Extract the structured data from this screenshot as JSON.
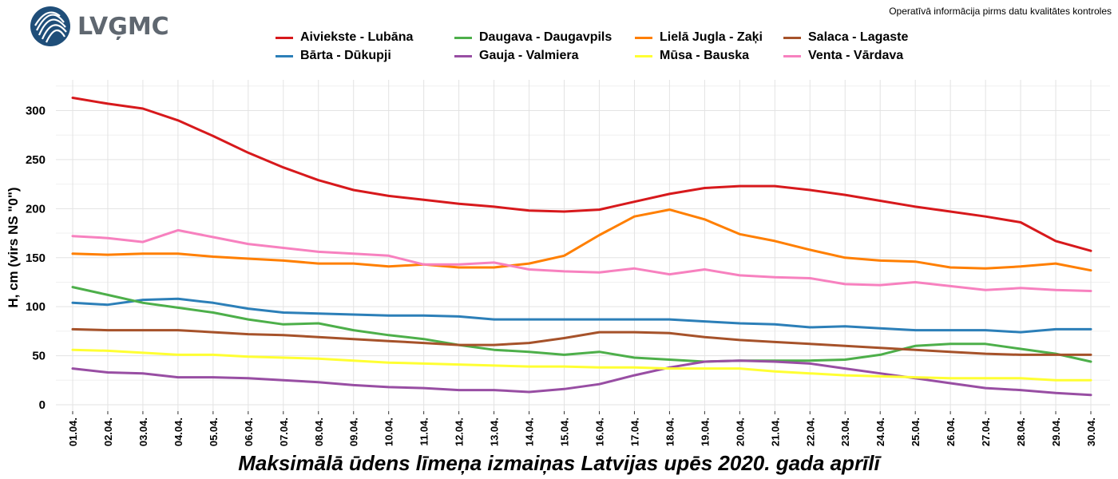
{
  "header": {
    "logo_text": "LVĢMC",
    "notice": "Operatīvā informācija pirms datu kvalitātes kontroles"
  },
  "chart_data": {
    "type": "line",
    "title": "Maksimālā ūdens līmeņa izmaiņas Latvijas upēs 2020. gada aprīlī",
    "xlabel": "",
    "ylabel": "H, cm (virs NS \"0\")",
    "ylim": [
      0,
      325
    ],
    "yticks": [
      0,
      50,
      100,
      150,
      200,
      250,
      300
    ],
    "grid": true,
    "legend_position": "top",
    "categories": [
      "01.04.",
      "02.04.",
      "03.04.",
      "04.04.",
      "05.04.",
      "06.04.",
      "07.04.",
      "08.04.",
      "09.04.",
      "10.04.",
      "11.04.",
      "12.04.",
      "13.04.",
      "14.04.",
      "15.04.",
      "16.04.",
      "17.04.",
      "18.04.",
      "19.04.",
      "20.04.",
      "21.04.",
      "22.04.",
      "23.04.",
      "24.04.",
      "25.04.",
      "26.04.",
      "27.04.",
      "28.04.",
      "29.04.",
      "30.04."
    ],
    "series": [
      {
        "name": "Aiviekste - Lubāna",
        "color": "#d7191c",
        "values": [
          313,
          307,
          302,
          290,
          274,
          257,
          242,
          229,
          219,
          213,
          209,
          205,
          202,
          198,
          197,
          199,
          207,
          215,
          221,
          223,
          223,
          219,
          214,
          208,
          202,
          197,
          192,
          186,
          167,
          157
        ]
      },
      {
        "name": "Bārta - Dūkupji",
        "color": "#2c7fb8",
        "values": [
          104,
          102,
          107,
          108,
          104,
          98,
          94,
          93,
          92,
          91,
          91,
          90,
          87,
          87,
          87,
          87,
          87,
          87,
          85,
          83,
          82,
          79,
          80,
          78,
          76,
          76,
          76,
          74,
          77,
          77
        ]
      },
      {
        "name": "Daugava - Daugavpils",
        "color": "#4daf4a",
        "values": [
          120,
          112,
          104,
          99,
          94,
          87,
          82,
          83,
          76,
          71,
          67,
          61,
          56,
          54,
          51,
          54,
          48,
          46,
          44,
          45,
          45,
          45,
          46,
          51,
          60,
          62,
          62,
          57,
          52,
          44
        ]
      },
      {
        "name": "Gauja - Valmiera",
        "color": "#984ea3",
        "values": [
          37,
          33,
          32,
          28,
          28,
          27,
          25,
          23,
          20,
          18,
          17,
          15,
          15,
          13,
          16,
          21,
          30,
          38,
          44,
          45,
          44,
          42,
          37,
          32,
          27,
          22,
          17,
          15,
          12,
          10
        ]
      },
      {
        "name": "Lielā Jugla - Zaķi",
        "color": "#ff7f00",
        "values": [
          154,
          153,
          154,
          154,
          151,
          149,
          147,
          144,
          144,
          141,
          143,
          140,
          140,
          144,
          152,
          173,
          192,
          199,
          189,
          174,
          167,
          158,
          150,
          147,
          146,
          140,
          139,
          141,
          144,
          137
        ]
      },
      {
        "name": "Mūsa - Bauska",
        "color": "#ffff33",
        "values": [
          56,
          55,
          53,
          51,
          51,
          49,
          48,
          47,
          45,
          43,
          42,
          41,
          40,
          39,
          39,
          38,
          38,
          37,
          37,
          37,
          34,
          32,
          30,
          29,
          28,
          27,
          27,
          27,
          25,
          25
        ]
      },
      {
        "name": "Salaca - Lagaste",
        "color": "#a6522a",
        "values": [
          77,
          76,
          76,
          76,
          74,
          72,
          71,
          69,
          67,
          65,
          63,
          61,
          61,
          63,
          68,
          74,
          74,
          73,
          69,
          66,
          64,
          62,
          60,
          58,
          56,
          54,
          52,
          51,
          51,
          51
        ]
      },
      {
        "name": "Venta - Vārdava",
        "color": "#f781bf",
        "values": [
          172,
          170,
          166,
          178,
          171,
          164,
          160,
          156,
          154,
          152,
          143,
          143,
          145,
          138,
          136,
          135,
          139,
          133,
          138,
          132,
          130,
          129,
          123,
          122,
          125,
          121,
          117,
          119,
          117,
          116
        ]
      }
    ]
  }
}
